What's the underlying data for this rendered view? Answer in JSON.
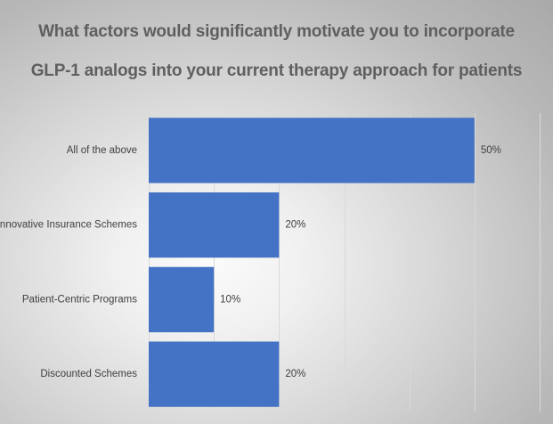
{
  "chart_data": {
    "type": "bar",
    "orientation": "horizontal",
    "title_lines": [
      "What factors would significantly motivate you to incorporate",
      "GLP-1 analogs into your current therapy approach for patients"
    ],
    "categories": [
      "All of the above",
      "Innovative Insurance Schemes",
      "Patient-Centric Programs",
      "Discounted Schemes"
    ],
    "values": [
      50,
      20,
      10,
      20
    ],
    "value_labels": [
      "50%",
      "20%",
      "10%",
      "20%"
    ],
    "xlim": [
      0,
      60
    ],
    "grid": true,
    "bar_color": "#4472c4"
  }
}
